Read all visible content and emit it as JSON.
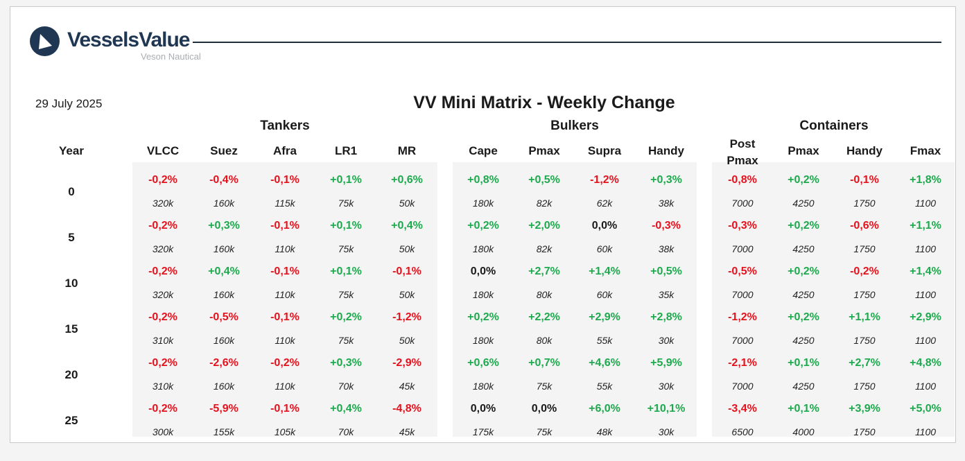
{
  "brand": {
    "name": "VesselsValue",
    "subtitle": "Veson Nautical",
    "color": "#1f3752"
  },
  "date": "29 July 2025",
  "title": "VV Mini Matrix - Weekly Change",
  "year_header": "Year",
  "colors": {
    "positive": "#1ea94e",
    "negative": "#e3121d",
    "neutral": "#1a1a1a"
  },
  "groups": [
    {
      "name": "Tankers",
      "columns": [
        "VLCC",
        "Suez",
        "Afra",
        "LR1",
        "MR"
      ]
    },
    {
      "name": "Bulkers",
      "columns": [
        "Cape",
        "Pmax",
        "Supra",
        "Handy"
      ]
    },
    {
      "name": "Containers",
      "columns": [
        "Post Pmax",
        "Pmax",
        "Handy",
        "Fmax"
      ]
    }
  ],
  "rows": [
    {
      "year": "0",
      "pct": [
        "-0,2%",
        "-0,4%",
        "-0,1%",
        "+0,1%",
        "+0,6%",
        "+0,8%",
        "+0,5%",
        "-1,2%",
        "+0,3%",
        "-0,8%",
        "+0,2%",
        "-0,1%",
        "+1,8%"
      ],
      "val": [
        "320k",
        "160k",
        "115k",
        "75k",
        "50k",
        "180k",
        "82k",
        "62k",
        "38k",
        "7000",
        "4250",
        "1750",
        "1100"
      ]
    },
    {
      "year": "5",
      "pct": [
        "-0,2%",
        "+0,3%",
        "-0,1%",
        "+0,1%",
        "+0,4%",
        "+0,2%",
        "+2,0%",
        "0,0%",
        "-0,3%",
        "-0,3%",
        "+0,2%",
        "-0,6%",
        "+1,1%"
      ],
      "val": [
        "320k",
        "160k",
        "110k",
        "75k",
        "50k",
        "180k",
        "82k",
        "60k",
        "38k",
        "7000",
        "4250",
        "1750",
        "1100"
      ]
    },
    {
      "year": "10",
      "pct": [
        "-0,2%",
        "+0,4%",
        "-0,1%",
        "+0,1%",
        "-0,1%",
        "0,0%",
        "+2,7%",
        "+1,4%",
        "+0,5%",
        "-0,5%",
        "+0,2%",
        "-0,2%",
        "+1,4%"
      ],
      "val": [
        "320k",
        "160k",
        "110k",
        "75k",
        "50k",
        "180k",
        "80k",
        "60k",
        "35k",
        "7000",
        "4250",
        "1750",
        "1100"
      ]
    },
    {
      "year": "15",
      "pct": [
        "-0,2%",
        "-0,5%",
        "-0,1%",
        "+0,2%",
        "-1,2%",
        "+0,2%",
        "+2,2%",
        "+2,9%",
        "+2,8%",
        "-1,2%",
        "+0,2%",
        "+1,1%",
        "+2,9%"
      ],
      "val": [
        "310k",
        "160k",
        "110k",
        "75k",
        "50k",
        "180k",
        "80k",
        "55k",
        "30k",
        "7000",
        "4250",
        "1750",
        "1100"
      ]
    },
    {
      "year": "20",
      "pct": [
        "-0,2%",
        "-2,6%",
        "-0,2%",
        "+0,3%",
        "-2,9%",
        "+0,6%",
        "+0,7%",
        "+4,6%",
        "+5,9%",
        "-2,1%",
        "+0,1%",
        "+2,7%",
        "+4,8%"
      ],
      "val": [
        "310k",
        "160k",
        "110k",
        "70k",
        "45k",
        "180k",
        "75k",
        "55k",
        "30k",
        "7000",
        "4250",
        "1750",
        "1100"
      ]
    },
    {
      "year": "25",
      "pct": [
        "-0,2%",
        "-5,9%",
        "-0,1%",
        "+0,4%",
        "-4,8%",
        "0,0%",
        "0,0%",
        "+6,0%",
        "+10,1%",
        "-3,4%",
        "+0,1%",
        "+3,9%",
        "+5,0%"
      ],
      "val": [
        "300k",
        "155k",
        "105k",
        "70k",
        "45k",
        "175k",
        "75k",
        "48k",
        "30k",
        "6500",
        "4000",
        "1750",
        "1100"
      ]
    }
  ]
}
